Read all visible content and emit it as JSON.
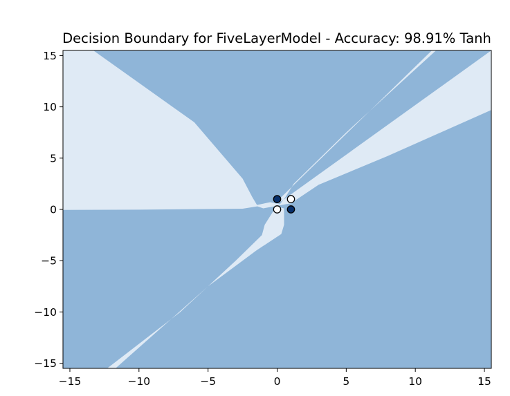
{
  "chart_data": {
    "type": "scatter",
    "title": "Decision Boundary for FiveLayerModel - Accuracy: 98.91% Tanh",
    "xlabel": "",
    "ylabel": "",
    "xlim": [
      -15.5,
      15.5
    ],
    "ylim": [
      -15.5,
      15.5
    ],
    "xticks": [
      -15,
      -10,
      -5,
      0,
      5,
      10,
      15
    ],
    "yticks": [
      -15,
      -10,
      -5,
      0,
      5,
      10,
      15
    ],
    "xtick_labels": [
      "−15",
      "−10",
      "−5",
      "0",
      "5",
      "10",
      "15"
    ],
    "ytick_labels": [
      "−15",
      "−10",
      "−5",
      "0",
      "5",
      "10",
      "15"
    ],
    "grid": false,
    "background_region_color": "#8fb5d8",
    "class1_region_color": "#dfeaf5",
    "points": [
      {
        "x": 0,
        "y": 0,
        "class": 0,
        "color": "#ffffff"
      },
      {
        "x": 1,
        "y": 1,
        "class": 0,
        "color": "#ffffff"
      },
      {
        "x": 0,
        "y": 1,
        "class": 1,
        "color": "#08306b"
      },
      {
        "x": 1,
        "y": 0,
        "class": 1,
        "color": "#08306b"
      }
    ],
    "regions": [
      {
        "name": "upper-left-light-region",
        "polygon": [
          [
            -15.5,
            15.5
          ],
          [
            -13.3,
            15.5
          ],
          [
            -6,
            8.5
          ],
          [
            -2.5,
            3
          ],
          [
            -1.8,
            1.2
          ],
          [
            -1.4,
            0.3
          ],
          [
            -2.5,
            0.07
          ],
          [
            -10,
            -0.03
          ],
          [
            -15.5,
            -0.05
          ]
        ]
      },
      {
        "name": "central-light-band",
        "polygon": [
          [
            15.5,
            15.5
          ],
          [
            15.5,
            9.7
          ],
          [
            8,
            5.2
          ],
          [
            3,
            2.4
          ],
          [
            1,
            0.6
          ],
          [
            -1,
            0.1
          ],
          [
            -1.4,
            0.28
          ],
          [
            -1.6,
            0.4
          ],
          [
            -0.5,
            0.7
          ],
          [
            0.2,
            0.5
          ],
          [
            0.6,
            1.2
          ],
          [
            1.2,
            2.5
          ],
          [
            5,
            7.5
          ],
          [
            11.5,
            15.5
          ],
          [
            11.2,
            15.5
          ],
          [
            0.3,
            1.2
          ],
          [
            -0.2,
            0.0
          ],
          [
            -0.9,
            -1.5
          ],
          [
            -1.1,
            -2.5
          ],
          [
            -3,
            -5
          ],
          [
            -7,
            -10
          ],
          [
            -12.3,
            -15.5
          ],
          [
            -11.7,
            -15.5
          ],
          [
            -5,
            -7.5
          ],
          [
            -1.5,
            -4
          ],
          [
            0.3,
            -2.4
          ],
          [
            0.5,
            -1.5
          ],
          [
            0.5,
            0.1
          ],
          [
            -0.2,
            0.3
          ]
        ]
      }
    ]
  }
}
